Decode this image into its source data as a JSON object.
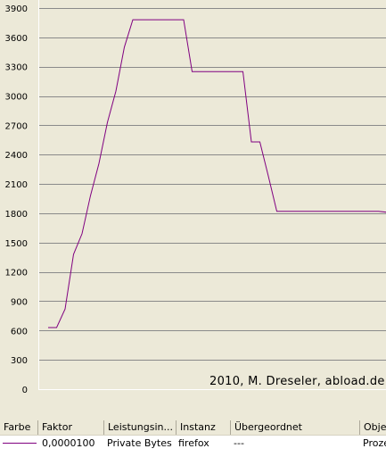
{
  "chart_data": {
    "type": "line",
    "y_ticks": [
      0,
      300,
      600,
      900,
      1200,
      1500,
      1800,
      2100,
      2400,
      2700,
      3000,
      3300,
      3600,
      3900
    ],
    "ylim": [
      0,
      3900
    ],
    "grid": true,
    "series": [
      {
        "color": "#800080",
        "values": [
          630,
          630,
          820,
          1380,
          1590,
          1980,
          2310,
          2730,
          3050,
          3500,
          3780,
          3780,
          3780,
          3780,
          3780,
          3780,
          3780,
          3250,
          3250,
          3250,
          3250,
          3250,
          3250,
          3250,
          2530,
          2530,
          2180,
          1820,
          1820,
          1820,
          1820,
          1820,
          1820,
          1820,
          1820,
          1820,
          1820,
          1820,
          1820,
          1820,
          1810
        ]
      }
    ]
  },
  "watermark": "2010, M. Dreseler, abload.de",
  "legend": {
    "headers": [
      "Farbe",
      "Faktor",
      "Leistungsin...",
      "Instanz",
      "Übergeordnet",
      "Obje"
    ],
    "row": {
      "color": "#800080",
      "factor": "0,0000100",
      "counter": "Private Bytes",
      "instance": "firefox",
      "parent": "---",
      "object": "Proze"
    }
  }
}
